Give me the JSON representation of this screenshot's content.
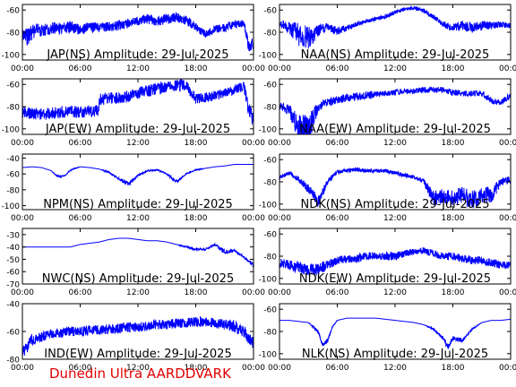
{
  "figure": {
    "footer": "Dunedin Ultra AARDDVARK",
    "line_color": "#0000ff",
    "axis_color": "#000000",
    "footer_color": "#e00000"
  },
  "chart_data": [
    {
      "type": "line",
      "title": "JAP(NS) Amplitude: 29-Jul-2025",
      "xlim": [
        0,
        24
      ],
      "xticks": [
        "00:00",
        "06:00",
        "12:00",
        "18:00",
        "00:00"
      ],
      "ylim": [
        -105,
        -55
      ],
      "yticks": [
        -60,
        -80,
        -100
      ],
      "series": [
        {
          "x": [
            0,
            0.5,
            1,
            1.5,
            2,
            3,
            4,
            5,
            6,
            7,
            8,
            9,
            10,
            11,
            12,
            13,
            14,
            15,
            16,
            17,
            18,
            19,
            20,
            21,
            22,
            23,
            23.5,
            24
          ],
          "y": [
            -82,
            -85,
            -80,
            -78,
            -79,
            -76,
            -77,
            -75,
            -78,
            -75,
            -76,
            -75,
            -74,
            -72,
            -70,
            -68,
            -70,
            -68,
            -67,
            -69,
            -75,
            -82,
            -77,
            -76,
            -73,
            -72,
            -92,
            -90
          ],
          "spread": [
            8,
            10,
            8,
            8,
            6,
            6,
            6,
            6,
            5,
            5,
            5,
            5,
            5,
            5,
            5,
            5,
            5,
            5,
            5,
            5,
            4,
            4,
            4,
            4,
            4,
            4,
            6,
            6
          ]
        }
      ]
    },
    {
      "type": "line",
      "title": "NAA(NS) Amplitude: 29-Jul-2025",
      "xlim": [
        0,
        24
      ],
      "xticks": [
        "00:00",
        "06:00",
        "12:00",
        "18:00",
        "00:00"
      ],
      "ylim": [
        -105,
        -55
      ],
      "yticks": [
        -60,
        -80,
        -100
      ],
      "series": [
        {
          "x": [
            0,
            1,
            2,
            3,
            4,
            5,
            6,
            7,
            8,
            9,
            10,
            11,
            12,
            13,
            14,
            15,
            16,
            17,
            18,
            19,
            20,
            21,
            22,
            23,
            24
          ],
          "y": [
            -72,
            -76,
            -82,
            -86,
            -78,
            -75,
            -79,
            -76,
            -73,
            -70,
            -68,
            -66,
            -62,
            -59,
            -58,
            -61,
            -66,
            -73,
            -76,
            -74,
            -76,
            -74,
            -74,
            -73,
            -74
          ],
          "spread": [
            3,
            6,
            12,
            12,
            6,
            4,
            4,
            3,
            2,
            2,
            2,
            2,
            2,
            2,
            2,
            2,
            2,
            3,
            4,
            5,
            5,
            5,
            4,
            3,
            3
          ]
        }
      ]
    },
    {
      "type": "line",
      "title": "JAP(EW) Amplitude: 29-Jul-2025",
      "xlim": [
        0,
        24
      ],
      "xticks": [
        "00:00",
        "06:00",
        "12:00",
        "18:00",
        "00:00"
      ],
      "ylim": [
        -105,
        -55
      ],
      "yticks": [
        -60,
        -80,
        -100
      ],
      "series": [
        {
          "x": [
            0,
            1,
            2,
            3,
            4,
            5,
            6,
            7,
            7.9,
            8,
            9,
            10,
            11,
            12,
            13,
            14,
            15,
            16,
            17,
            18,
            19,
            20,
            21,
            22,
            23,
            23.5,
            24
          ],
          "y": [
            -85,
            -86,
            -87,
            -86,
            -85,
            -84,
            -85,
            -84,
            -84,
            -74,
            -72,
            -72,
            -71,
            -68,
            -66,
            -64,
            -63,
            -61,
            -60,
            -73,
            -72,
            -70,
            -68,
            -65,
            -62,
            -82,
            -92
          ],
          "spread": [
            6,
            6,
            6,
            6,
            6,
            6,
            6,
            6,
            6,
            6,
            6,
            6,
            6,
            6,
            6,
            6,
            6,
            6,
            6,
            5,
            5,
            5,
            5,
            5,
            5,
            8,
            8
          ]
        }
      ]
    },
    {
      "type": "line",
      "title": "NAA(EW) Amplitude: 29-Jul-2025",
      "xlim": [
        0,
        24
      ],
      "xticks": [
        "00:00",
        "06:00",
        "12:00",
        "18:00",
        "00:00"
      ],
      "ylim": [
        -105,
        -55
      ],
      "yticks": [
        -60,
        -80,
        -100
      ],
      "series": [
        {
          "x": [
            0,
            1,
            2,
            3,
            4,
            5,
            6,
            7,
            8,
            9,
            10,
            11,
            12,
            13,
            14,
            15,
            16,
            17,
            18,
            19,
            20,
            21,
            22,
            23,
            24
          ],
          "y": [
            -80,
            -82,
            -100,
            -102,
            -80,
            -76,
            -74,
            -72,
            -71,
            -70,
            -69,
            -68,
            -67,
            -66,
            -66,
            -65,
            -65,
            -65,
            -67,
            -68,
            -68,
            -68,
            -75,
            -76,
            -70
          ],
          "spread": [
            3,
            6,
            14,
            16,
            5,
            4,
            4,
            4,
            4,
            4,
            3,
            3,
            3,
            3,
            3,
            3,
            3,
            3,
            3,
            3,
            3,
            3,
            3,
            3,
            3
          ]
        }
      ]
    },
    {
      "type": "line",
      "title": "NPM(NS) Amplitude: 29-Jul-2025",
      "xlim": [
        0,
        24
      ],
      "xticks": [
        "00:00",
        "06:00",
        "12:00",
        "18:00",
        "00:00"
      ],
      "ylim": [
        -105,
        -35
      ],
      "yticks": [
        -40,
        -60,
        -80,
        -100
      ],
      "series": [
        {
          "x": [
            0,
            1,
            2,
            3,
            3.5,
            4,
            4.5,
            5,
            6,
            7,
            8,
            9,
            10,
            11,
            12,
            13,
            14,
            15,
            16,
            17,
            18,
            19,
            20,
            21,
            22,
            23,
            24
          ],
          "y": [
            -52,
            -51,
            -52,
            -56,
            -62,
            -64,
            -61,
            -55,
            -51,
            -52,
            -54,
            -58,
            -66,
            -73,
            -62,
            -56,
            -55,
            -60,
            -70,
            -60,
            -55,
            -53,
            -51,
            -50,
            -48,
            -48,
            -48
          ],
          "spread": [
            0,
            0,
            0,
            0,
            1,
            2,
            1,
            1,
            0,
            0,
            0,
            1,
            2,
            3,
            2,
            1,
            1,
            1,
            3,
            1,
            1,
            0,
            0,
            0,
            0,
            0,
            0
          ]
        }
      ]
    },
    {
      "type": "line",
      "title": "NDK(NS) Amplitude: 29-Jul-2025",
      "xlim": [
        0,
        24
      ],
      "xticks": [
        "00:00",
        "06:00",
        "12:00",
        "18:00",
        "00:00"
      ],
      "ylim": [
        -105,
        -55
      ],
      "yticks": [
        -60,
        -80,
        -100
      ],
      "series": [
        {
          "x": [
            0,
            1,
            2,
            3,
            4,
            5,
            6,
            7,
            8,
            9,
            10,
            11,
            12,
            13,
            14,
            15,
            16,
            17,
            18,
            19,
            20,
            21,
            22,
            23,
            24
          ],
          "y": [
            -76,
            -72,
            -78,
            -86,
            -98,
            -80,
            -71,
            -70,
            -69,
            -70,
            -70,
            -70,
            -72,
            -74,
            -76,
            -80,
            -95,
            -92,
            -95,
            -92,
            -97,
            -92,
            -92,
            -80,
            -78
          ],
          "spread": [
            2,
            2,
            3,
            5,
            6,
            3,
            2,
            2,
            2,
            2,
            2,
            2,
            2,
            2,
            2,
            3,
            8,
            8,
            8,
            8,
            10,
            8,
            8,
            4,
            4
          ]
        }
      ]
    },
    {
      "type": "line",
      "title": "NWC(NS) Amplitude: 29-Jul-2025",
      "xlim": [
        0,
        24
      ],
      "xticks": [
        "00:00",
        "06:00",
        "12:00",
        "18:00",
        "00:00"
      ],
      "ylim": [
        -70,
        -25
      ],
      "yticks": [
        -30,
        -40,
        -50,
        -60,
        -70
      ],
      "series": [
        {
          "x": [
            0,
            1,
            2,
            3,
            4,
            5,
            6,
            7,
            8,
            9,
            10,
            11,
            12,
            13,
            14,
            15,
            16,
            17,
            18,
            19,
            20,
            21,
            22,
            23,
            24
          ],
          "y": [
            -40,
            -40,
            -40,
            -40,
            -40,
            -40,
            -38,
            -37,
            -36,
            -34,
            -33,
            -33,
            -34,
            -35,
            -35,
            -36,
            -38,
            -40,
            -42,
            -42,
            -38,
            -44,
            -43,
            -48,
            -55
          ],
          "spread": [
            0,
            0,
            0,
            0,
            0,
            0,
            0,
            0,
            0,
            0,
            0,
            0,
            0,
            0,
            0,
            0,
            0,
            1,
            1,
            1,
            1,
            2,
            1,
            1,
            2
          ]
        }
      ]
    },
    {
      "type": "line",
      "title": "NDK(EW) Amplitude: 29-Jul-2025",
      "xlim": [
        0,
        24
      ],
      "xticks": [
        "00:00",
        "06:00",
        "12:00",
        "18:00",
        "00:00"
      ],
      "ylim": [
        -105,
        -55
      ],
      "yticks": [
        -60,
        -80,
        -100
      ],
      "series": [
        {
          "x": [
            0,
            1,
            2,
            3,
            4,
            5,
            6,
            7,
            8,
            9,
            10,
            11,
            12,
            13,
            14,
            15,
            16,
            17,
            18,
            19,
            20,
            21,
            22,
            23,
            24
          ],
          "y": [
            -86,
            -88,
            -90,
            -92,
            -92,
            -88,
            -84,
            -82,
            -82,
            -80,
            -80,
            -80,
            -80,
            -78,
            -76,
            -75,
            -78,
            -80,
            -80,
            -82,
            -84,
            -84,
            -86,
            -88,
            -88
          ],
          "spread": [
            5,
            5,
            6,
            6,
            6,
            5,
            4,
            4,
            4,
            4,
            4,
            4,
            4,
            4,
            3,
            3,
            4,
            4,
            4,
            4,
            4,
            4,
            4,
            4,
            4
          ]
        }
      ]
    },
    {
      "type": "line",
      "title": "IND(EW) Amplitude: 29-Jul-2025",
      "xlim": [
        0,
        24
      ],
      "xticks": [
        "00:00",
        "06:00",
        "12:00",
        "18:00",
        "00:00"
      ],
      "ylim": [
        -80,
        -40
      ],
      "yticks": [
        -40,
        -60,
        -80
      ],
      "series": [
        {
          "x": [
            0,
            1,
            2,
            3,
            4,
            5,
            6,
            7,
            8,
            9,
            10,
            11,
            12,
            13,
            14,
            15,
            16,
            17,
            18,
            19,
            20,
            21,
            22,
            23,
            24
          ],
          "y": [
            -76,
            -66,
            -64,
            -62,
            -61,
            -60,
            -60,
            -59,
            -59,
            -58,
            -58,
            -57,
            -57,
            -56,
            -55,
            -55,
            -54,
            -54,
            -53,
            -53,
            -54,
            -55,
            -56,
            -60,
            -70
          ],
          "spread": [
            5,
            5,
            4,
            4,
            4,
            4,
            4,
            4,
            4,
            4,
            4,
            4,
            4,
            4,
            4,
            4,
            4,
            4,
            4,
            4,
            4,
            4,
            5,
            5,
            6
          ]
        }
      ]
    },
    {
      "type": "line",
      "title": "NLK(NS) Amplitude: 29-Jul-2025",
      "xlim": [
        0,
        24
      ],
      "xticks": [
        "00:00",
        "06:00",
        "12:00",
        "18:00",
        "00:00"
      ],
      "ylim": [
        -105,
        -55
      ],
      "yticks": [
        -60,
        -80,
        -100
      ],
      "series": [
        {
          "x": [
            0,
            1,
            2,
            3,
            4,
            4.5,
            5,
            5.5,
            6,
            7,
            8,
            9,
            10,
            11,
            12,
            13,
            14,
            15,
            16,
            17,
            17.5,
            18,
            19,
            20,
            21,
            22,
            23,
            24
          ],
          "y": [
            -70,
            -70,
            -71,
            -72,
            -80,
            -92,
            -88,
            -76,
            -70,
            -68,
            -68,
            -68,
            -68,
            -69,
            -70,
            -71,
            -72,
            -74,
            -78,
            -86,
            -94,
            -86,
            -88,
            -78,
            -72,
            -70,
            -70,
            -69
          ],
          "spread": [
            0,
            0,
            0,
            0,
            2,
            2,
            2,
            1,
            0,
            0,
            0,
            0,
            0,
            0,
            0,
            0,
            0,
            0,
            1,
            2,
            3,
            2,
            2,
            1,
            0,
            0,
            0,
            0
          ]
        }
      ]
    }
  ]
}
